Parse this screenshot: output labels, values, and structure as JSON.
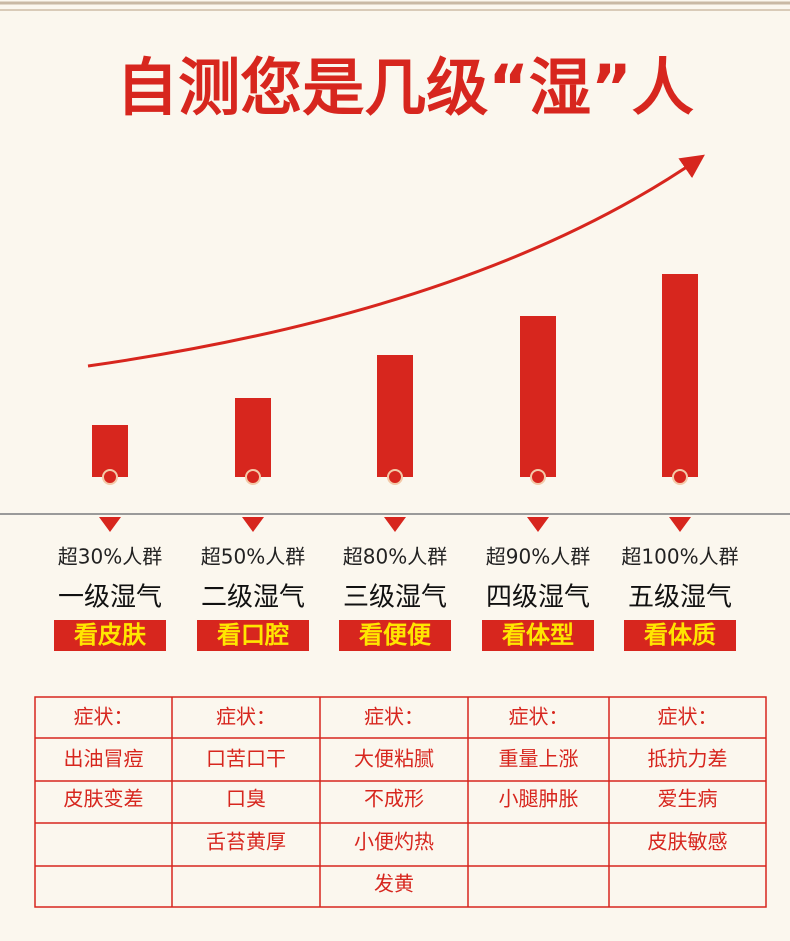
{
  "title": "自测您是几级“湿”人",
  "symptom_header": "症状：",
  "columns": [
    {
      "group": "超30%人群",
      "level": "一级湿气",
      "check": "看皮肤",
      "symptoms": [
        "出油冒痘",
        "皮肤变差"
      ]
    },
    {
      "group": "超50%人群",
      "level": "二级湿气",
      "check": "看口腔",
      "symptoms": [
        "口苦口干",
        "口臭",
        "舌苔黄厚"
      ]
    },
    {
      "group": "超80%人群",
      "level": "三级湿气",
      "check": "看便便",
      "symptoms": [
        "大便粘腻",
        "不成形",
        "小便灼热",
        "发黄"
      ]
    },
    {
      "group": "超90%人群",
      "level": "四级湿气",
      "check": "看体型",
      "symptoms": [
        "重量上涨",
        "小腿肿胀"
      ]
    },
    {
      "group": "超100%人群",
      "level": "五级湿气",
      "check": "看体质",
      "symptoms": [
        "抵抗力差",
        "爱生病",
        "皮肤敏感"
      ]
    }
  ]
}
